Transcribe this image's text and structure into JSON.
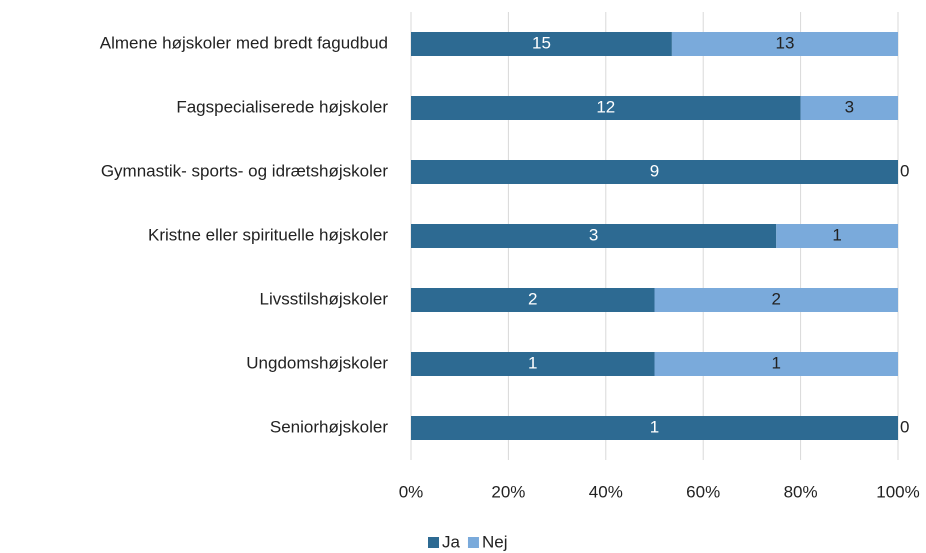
{
  "chart_data": {
    "type": "bar",
    "orientation": "horizontal",
    "stacking": "percent",
    "categories": [
      "Almene højskoler med bredt fagudbud",
      "Fagspecialiserede højskoler",
      "Gymnastik- sports- og idrætshøjskoler",
      "Kristne eller spirituelle højskoler",
      "Livsstilshøjskoler",
      "Ungdomshøjskoler",
      "Seniorhøjskoler"
    ],
    "series": [
      {
        "name": "Ja",
        "color": "#2d6a92",
        "values": [
          15,
          12,
          9,
          3,
          2,
          1,
          1
        ]
      },
      {
        "name": "Nej",
        "color": "#7aaadb",
        "values": [
          13,
          3,
          0,
          1,
          2,
          1,
          0
        ]
      }
    ],
    "xlim": [
      0,
      100
    ],
    "xticks": [
      {
        "value": 0,
        "label": "0%"
      },
      {
        "value": 20,
        "label": "20%"
      },
      {
        "value": 40,
        "label": "40%"
      },
      {
        "value": 60,
        "label": "60%"
      },
      {
        "value": 80,
        "label": "80%"
      },
      {
        "value": 100,
        "label": "100%"
      }
    ],
    "grid": true,
    "legend": "bottom"
  }
}
